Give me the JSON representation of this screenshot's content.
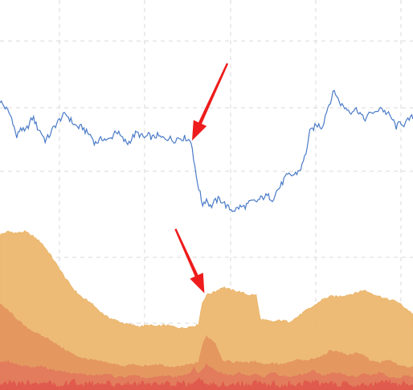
{
  "chart_data": [
    {
      "type": "line",
      "grid": true,
      "legend": "none",
      "xlim": [
        0,
        100
      ],
      "ylim": [
        0,
        100
      ],
      "series": [
        {
          "color": "#4a7bc8",
          "x": [
            0,
            1,
            2,
            3,
            4,
            5,
            6,
            7,
            8,
            9,
            10,
            11,
            12,
            13,
            14,
            15,
            16,
            17,
            18,
            19,
            20,
            21,
            22,
            23,
            24,
            25,
            26,
            27,
            28,
            29,
            30,
            31,
            32,
            33,
            34,
            35,
            36,
            37,
            38,
            39,
            40,
            41,
            42,
            43,
            44,
            45,
            46,
            46.5,
            47,
            48,
            49,
            50,
            51,
            52,
            53,
            54,
            55,
            56,
            57,
            58,
            59,
            60,
            61,
            62,
            63,
            64,
            65,
            66,
            67,
            68,
            69,
            70,
            71,
            72,
            73,
            74,
            75,
            76,
            77,
            78,
            79,
            80,
            81,
            82,
            83,
            84,
            85,
            86,
            87,
            88,
            89,
            90,
            91,
            92,
            93,
            94,
            95,
            96,
            97,
            98,
            99,
            100
          ],
          "values": [
            62,
            60,
            58,
            55,
            48,
            52,
            50,
            53,
            56,
            52,
            50,
            47,
            49,
            52,
            54,
            56,
            57,
            55,
            53,
            52,
            52,
            50,
            49,
            46,
            47,
            48,
            47,
            48,
            51,
            49,
            47,
            46,
            48,
            50,
            49,
            48,
            49,
            48,
            49,
            48,
            48,
            48,
            47,
            48,
            48,
            48,
            47,
            46,
            38,
            30,
            23,
            25,
            22,
            24,
            25,
            24,
            22,
            21,
            21,
            22,
            22,
            23,
            24,
            24,
            25,
            26,
            26,
            25,
            28,
            30,
            33,
            34,
            34,
            35,
            37,
            42,
            50,
            52,
            53,
            52,
            58,
            62,
            66,
            62,
            60,
            59,
            58,
            59,
            58,
            55,
            56,
            58,
            57,
            60,
            58,
            57,
            55,
            52,
            54,
            53,
            55,
            56
          ]
        }
      ]
    },
    {
      "type": "area",
      "grid": true,
      "legend": "none",
      "xlim": [
        0,
        100
      ],
      "ylim": [
        0,
        100
      ],
      "series": [
        {
          "color": "#ebb56a",
          "x": [
            0,
            2,
            4,
            6,
            8,
            10,
            12,
            14,
            16,
            18,
            20,
            22,
            24,
            26,
            28,
            30,
            32,
            34,
            36,
            38,
            40,
            42,
            44,
            46,
            48,
            49,
            50,
            52,
            54,
            56,
            58,
            60,
            62,
            63,
            64,
            66,
            68,
            70,
            72,
            74,
            76,
            78,
            80,
            82,
            84,
            86,
            88,
            90,
            92,
            94,
            96,
            98,
            100
          ],
          "values": [
            98,
            100,
            99,
            100,
            97,
            93,
            86,
            78,
            70,
            63,
            58,
            55,
            50,
            46,
            44,
            42,
            41,
            40,
            41,
            40,
            41,
            40,
            39,
            40,
            41,
            55,
            60,
            62,
            65,
            63,
            62,
            60,
            60,
            45,
            44,
            43,
            44,
            43,
            46,
            50,
            53,
            57,
            59,
            59,
            60,
            61,
            63,
            61,
            59,
            57,
            56,
            52,
            48
          ]
        },
        {
          "color": "#e3955e",
          "x": [
            0,
            2,
            4,
            6,
            8,
            10,
            12,
            14,
            16,
            18,
            20,
            22,
            24,
            26,
            28,
            30,
            32,
            34,
            36,
            38,
            40,
            42,
            44,
            46,
            48,
            49,
            50,
            52,
            54,
            55,
            56,
            58,
            60,
            62,
            64,
            66,
            68,
            70,
            72,
            74,
            76,
            78,
            80,
            82,
            84,
            86,
            88,
            90,
            92,
            94,
            96,
            98,
            100
          ],
          "values": [
            54,
            50,
            45,
            40,
            37,
            34,
            32,
            28,
            25,
            22,
            20,
            19,
            18,
            17,
            16,
            15,
            16,
            15,
            15,
            16,
            15,
            14,
            15,
            16,
            17,
            28,
            34,
            30,
            18,
            19,
            17,
            18,
            17,
            18,
            16,
            17,
            16,
            17,
            19,
            18,
            20,
            21,
            25,
            24,
            22,
            23,
            22,
            18,
            17,
            19,
            16,
            15,
            14
          ]
        },
        {
          "color": "#e27a5c",
          "x": [
            0,
            2,
            4,
            6,
            8,
            10,
            12,
            14,
            16,
            18,
            20,
            22,
            24,
            26,
            28,
            30,
            32,
            34,
            36,
            38,
            40,
            42,
            44,
            46,
            47,
            48,
            50,
            52,
            54,
            56,
            58,
            60,
            62,
            64,
            66,
            68,
            70,
            72,
            74,
            76,
            78,
            80,
            82,
            84,
            86,
            88,
            90,
            92,
            94,
            96,
            98,
            100
          ],
          "values": [
            17,
            18,
            16,
            15,
            14,
            15,
            13,
            12,
            11,
            10,
            10,
            9,
            9,
            10,
            8,
            8,
            9,
            8,
            7,
            8,
            9,
            8,
            9,
            10,
            14,
            10,
            16,
            12,
            10,
            9,
            11,
            9,
            10,
            8,
            11,
            9,
            8,
            9,
            10,
            12,
            9,
            10,
            11,
            9,
            8,
            10,
            9,
            11,
            8,
            7,
            9,
            8
          ]
        },
        {
          "color": "#e0584c",
          "x": [
            0,
            2,
            4,
            6,
            8,
            10,
            12,
            14,
            16,
            18,
            20,
            22,
            24,
            26,
            28,
            30,
            32,
            34,
            36,
            38,
            40,
            42,
            44,
            46,
            48,
            50,
            52,
            54,
            56,
            58,
            60,
            62,
            64,
            66,
            68,
            70,
            72,
            74,
            76,
            78,
            80,
            82,
            84,
            86,
            88,
            90,
            92,
            94,
            96,
            98,
            100
          ],
          "values": [
            4,
            5,
            3,
            4,
            5,
            3,
            4,
            3,
            4,
            5,
            3,
            4,
            3,
            4,
            3,
            4,
            3,
            4,
            3,
            3,
            4,
            3,
            4,
            3,
            6,
            4,
            3,
            4,
            3,
            4,
            3,
            5,
            3,
            4,
            3,
            4,
            3,
            4,
            5,
            3,
            4,
            3,
            4,
            3,
            4,
            3,
            4,
            5,
            3,
            4,
            3
          ]
        }
      ]
    }
  ],
  "annotations": [
    {
      "type": "arrow",
      "color": "#ee1c1c",
      "chart": 0,
      "x": 46.5,
      "y": 47
    },
    {
      "type": "arrow",
      "color": "#ee1c1c",
      "chart": 1,
      "x": 49.5,
      "y": 61
    }
  ]
}
